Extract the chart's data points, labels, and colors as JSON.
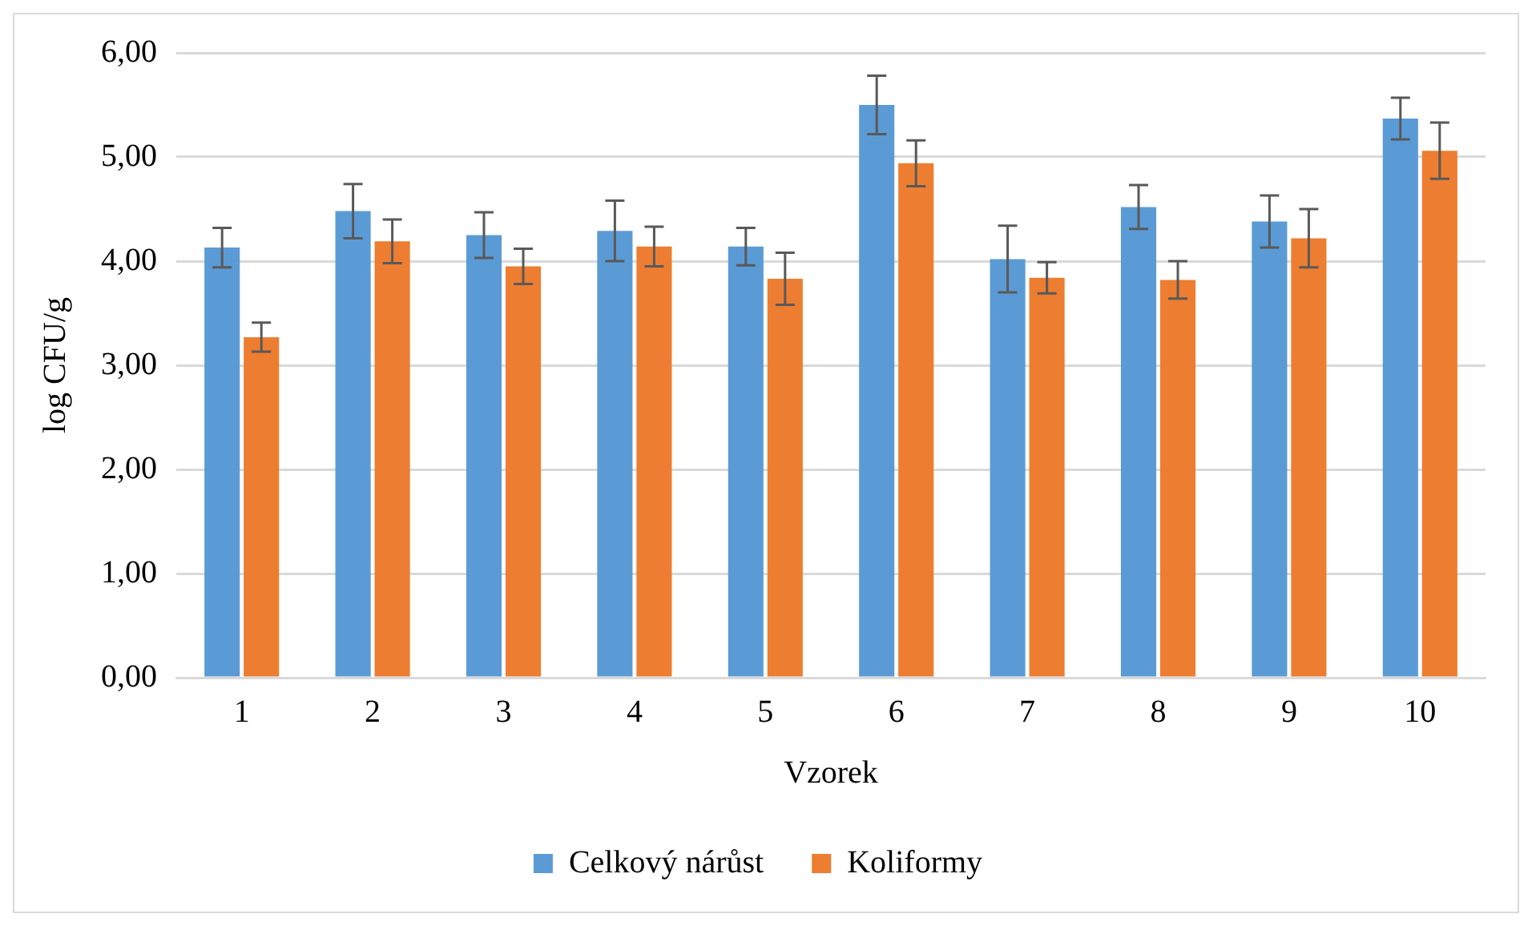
{
  "chart_data": {
    "type": "bar",
    "xlabel": "Vzorek",
    "ylabel": "log CFU/g",
    "categories": [
      "1",
      "2",
      "3",
      "4",
      "5",
      "6",
      "7",
      "8",
      "9",
      "10"
    ],
    "series": [
      {
        "name": "Celkový nárůst",
        "color": "#5b9bd5",
        "values": [
          4.13,
          4.48,
          4.25,
          4.29,
          4.14,
          5.5,
          4.02,
          4.52,
          4.38,
          5.37
        ],
        "errors": [
          0.19,
          0.26,
          0.22,
          0.29,
          0.18,
          0.28,
          0.32,
          0.21,
          0.25,
          0.2
        ]
      },
      {
        "name": "Koliformy",
        "color": "#ed7d31",
        "values": [
          3.27,
          4.19,
          3.95,
          4.14,
          3.83,
          4.94,
          3.84,
          3.82,
          4.22,
          5.06
        ],
        "errors": [
          0.14,
          0.21,
          0.17,
          0.19,
          0.25,
          0.22,
          0.15,
          0.18,
          0.28,
          0.27
        ]
      }
    ],
    "ylim": [
      0,
      6
    ],
    "yticks": [
      {
        "value": 0,
        "label": "0,00"
      },
      {
        "value": 1,
        "label": "1,00"
      },
      {
        "value": 2,
        "label": "2,00"
      },
      {
        "value": 3,
        "label": "3,00"
      },
      {
        "value": 4,
        "label": "4,00"
      },
      {
        "value": 5,
        "label": "5,00"
      },
      {
        "value": 6,
        "label": "6,00"
      }
    ],
    "grid": "y",
    "legend": "bottom"
  }
}
